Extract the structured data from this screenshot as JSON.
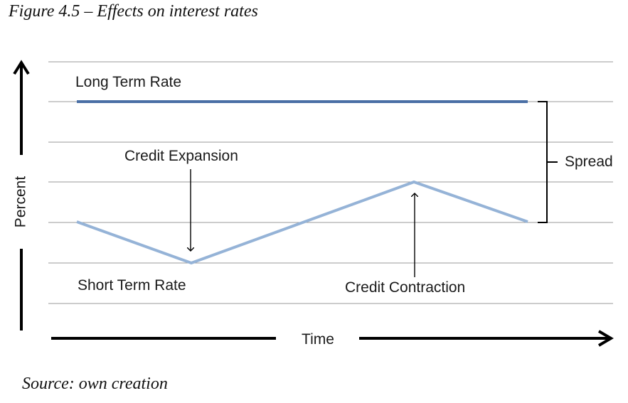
{
  "figure_title": "Figure 4.5 – Effects on interest rates",
  "source": "Source: own creation",
  "axes": {
    "x_label": "Time",
    "y_label": "Percent"
  },
  "labels": {
    "long_term_rate": "Long Term Rate",
    "short_term_rate": "Short Term Rate",
    "credit_expansion": "Credit Expansion",
    "credit_contraction": "Credit Contraction",
    "spread": "Spread"
  },
  "colors": {
    "long_term_line": "#4a6fa5",
    "short_term_line": "#95b3d7",
    "gridline": "#999999",
    "arrow": "#000000"
  }
}
